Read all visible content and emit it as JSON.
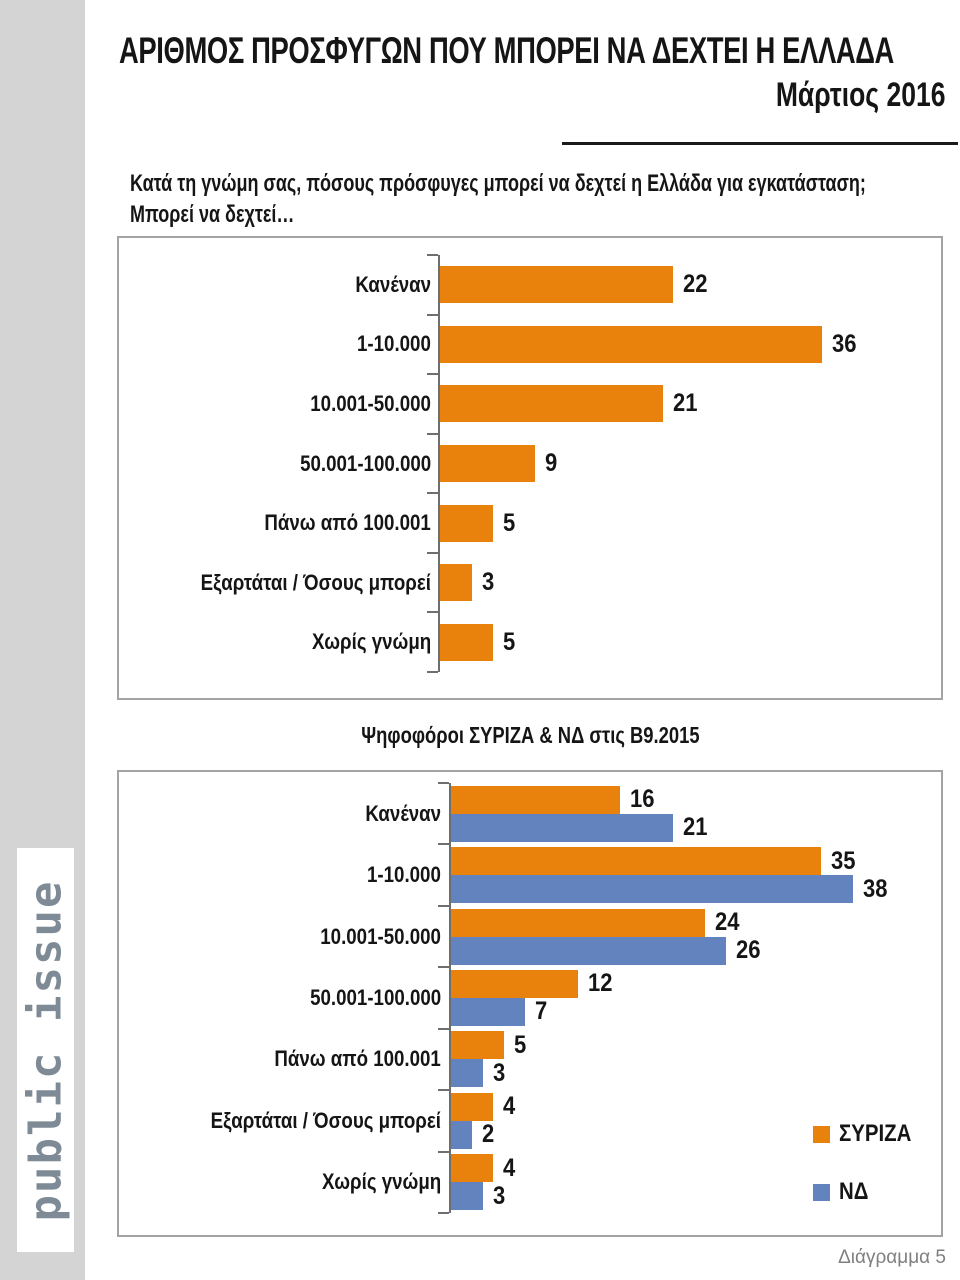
{
  "header": {
    "title": "ΑΡΙΘΜΟΣ ΠΡΟΣΦΥΓΩΝ ΠΟΥ ΜΠΟΡΕΙ ΝΑ ΔΕΧΤΕΙ Η ΕΛΛΑΔΑ",
    "subtitle": "Μάρτιος 2016"
  },
  "question": {
    "line1": "Κατά τη γνώμη σας, πόσους πρόσφυγες μπορεί να δεχτεί η Ελλάδα για εγκατάσταση;",
    "line2": "Μπορεί να δεχτεί…"
  },
  "sidebar": {
    "logo_text": "public issue"
  },
  "footer": {
    "label": "Διάγραμμα 5"
  },
  "colors": {
    "orange": "#E8820C",
    "blue": "#6383BE",
    "sidebar_gray": "#D4D4D4",
    "logo_gray": "#7E8A95",
    "border_gray": "#A3A3A3",
    "axis_gray": "#6E6E6E",
    "footer_gray": "#7F7F7F",
    "text_black": "#151515",
    "rule_black": "#1A1A1A"
  },
  "chart_data": [
    {
      "type": "bar",
      "orientation": "horizontal",
      "title": "",
      "categories": [
        "Κανέναν",
        "1-10.000",
        "10.001-50.000",
        "50.001-100.000",
        "Πάνω από 100.001",
        "Εξαρτάται / Όσους μπορεί",
        "Χωρίς γνώμη"
      ],
      "values": [
        22,
        36,
        21,
        9,
        5,
        3,
        5
      ],
      "bar_color": "#E8820C",
      "xlim": [
        0,
        47
      ],
      "grid": false,
      "data_labels": true,
      "legend_position": "none"
    },
    {
      "type": "bar",
      "orientation": "horizontal",
      "title": "Ψηφοφόροι ΣΥΡΙΖΑ & ΝΔ στις Β9.2015",
      "categories": [
        "Κανέναν",
        "1-10.000",
        "10.001-50.000",
        "50.001-100.000",
        "Πάνω από 100.001",
        "Εξαρτάται / Όσους μπορεί",
        "Χωρίς γνώμη"
      ],
      "series": [
        {
          "name": "ΣΥΡΙΖΑ",
          "color": "#E8820C",
          "values": [
            16,
            35,
            24,
            12,
            5,
            4,
            4
          ]
        },
        {
          "name": "ΝΔ",
          "color": "#6383BE",
          "values": [
            21,
            38,
            26,
            7,
            3,
            2,
            3
          ]
        }
      ],
      "xlim": [
        0,
        47
      ],
      "grid": false,
      "data_labels": true,
      "legend_position": "right"
    }
  ]
}
